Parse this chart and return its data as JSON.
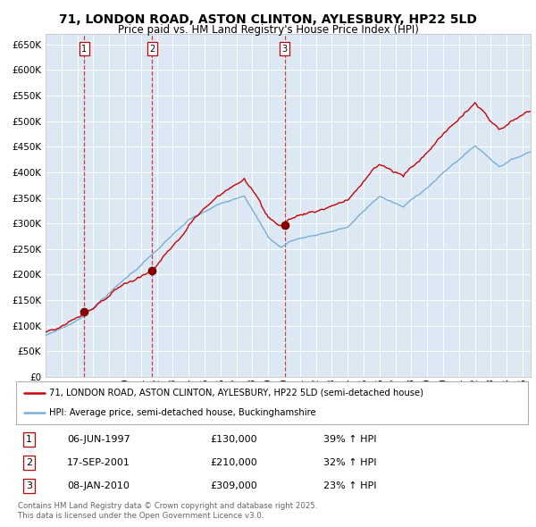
{
  "title_line1": "71, LONDON ROAD, ASTON CLINTON, AYLESBURY, HP22 5LD",
  "title_line2": "Price paid vs. HM Land Registry's House Price Index (HPI)",
  "plot_bg_color": "#dce9f5",
  "red_line_color": "#cc0000",
  "blue_line_color": "#7aaed6",
  "ylim": [
    0,
    670000
  ],
  "legend_line1": "71, LONDON ROAD, ASTON CLINTON, AYLESBURY, HP22 5LD (semi-detached house)",
  "legend_line2": "HPI: Average price, semi-detached house, Buckinghamshire",
  "purchases": [
    {
      "num": 1,
      "date": "06-JUN-1997",
      "price": 130000,
      "pct": "39%",
      "x_year": 1997.43
    },
    {
      "num": 2,
      "date": "17-SEP-2001",
      "price": 210000,
      "pct": "32%",
      "x_year": 2001.71
    },
    {
      "num": 3,
      "date": "08-JAN-2010",
      "price": 309000,
      "pct": "23%",
      "x_year": 2010.03
    }
  ],
  "footer_line1": "Contains HM Land Registry data © Crown copyright and database right 2025.",
  "footer_line2": "This data is licensed under the Open Government Licence v3.0.",
  "xmin": 1995.0,
  "xmax": 2025.5
}
